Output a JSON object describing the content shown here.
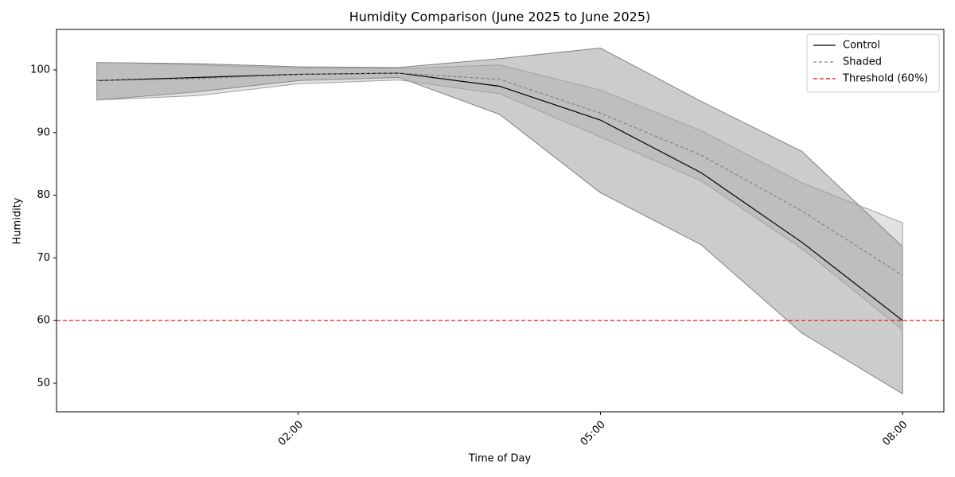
{
  "chart_data": {
    "type": "line",
    "title": "Humidity Comparison (June 2025 to June 2025)",
    "xlabel": "Time of Day",
    "ylabel": "Humidity",
    "x": [
      0,
      1,
      2,
      3,
      4,
      5,
      6,
      7,
      8
    ],
    "series": [
      {
        "name": "Control",
        "color": "#000000",
        "dash": "none",
        "values": [
          98.3,
          98.8,
          99.3,
          99.5,
          97.4,
          92.0,
          83.6,
          72.5,
          60.0
        ],
        "band": {
          "lower": [
            95.2,
            96.5,
            98.3,
            98.8,
            92.9,
            80.4,
            72.1,
            58.0,
            48.3
          ],
          "upper": [
            101.2,
            101.0,
            100.5,
            100.4,
            101.8,
            103.5,
            95.0,
            87.0,
            71.8
          ]
        },
        "band_color": "#808080",
        "band_opacity": 0.4
      },
      {
        "name": "Shaded",
        "color": "#808080",
        "dash": "4 3",
        "values": [
          98.3,
          98.6,
          99.3,
          99.5,
          98.5,
          93.1,
          86.4,
          77.5,
          67.2
        ],
        "band": {
          "lower": [
            95.2,
            95.9,
            97.8,
            98.4,
            96.2,
            89.3,
            82.3,
            71.5,
            58.5
          ],
          "upper": [
            101.2,
            100.8,
            100.3,
            100.2,
            100.8,
            96.8,
            90.3,
            82.0,
            75.6
          ]
        },
        "band_color": "#a0a0a0",
        "band_opacity": 0.3
      }
    ],
    "hlines": [
      {
        "name": "Threshold (60%)",
        "value": 60,
        "color": "#ff0000"
      }
    ],
    "xlim": [
      -0.4,
      8.41
    ],
    "xticks": [
      {
        "value": 2,
        "label": "02:00"
      },
      {
        "value": 5,
        "label": "05:00"
      },
      {
        "value": 8,
        "label": "08:00"
      }
    ],
    "ylim": [
      45.43,
      106.47
    ],
    "yticks": [
      50,
      60,
      70,
      80,
      90,
      100
    ],
    "legend": "upper right"
  }
}
